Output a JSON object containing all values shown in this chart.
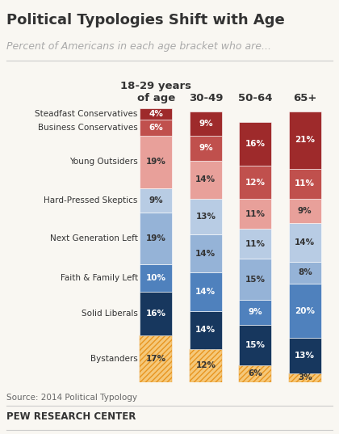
{
  "title": "Political Typologies Shift with Age",
  "subtitle": "Percent of Americans in each age bracket who are...",
  "source": "Source: 2014 Political Typology",
  "footer": "PEW RESEARCH CENTER",
  "age_groups": [
    "18-29 years\nof age",
    "30-49",
    "50-64",
    "65+"
  ],
  "categories": [
    "Steadfast Conservatives",
    "Business Conservatives",
    "Young Outsiders",
    "Hard-Pressed Skeptics",
    "Next Generation Left",
    "Faith & Family Left",
    "Solid Liberals",
    "Bystanders"
  ],
  "values": {
    "18-29 years\nof age": [
      4,
      6,
      19,
      9,
      19,
      10,
      16,
      17
    ],
    "30-49": [
      9,
      9,
      14,
      13,
      14,
      14,
      14,
      12
    ],
    "50-64": [
      16,
      12,
      11,
      11,
      15,
      9,
      15,
      6
    ],
    "65+": [
      21,
      11,
      9,
      14,
      8,
      20,
      13,
      3
    ]
  },
  "solid_colors": {
    "Steadfast Conservatives": "#9e2a2b",
    "Business Conservatives": "#c0504d",
    "Young Outsiders": "#e8a09a",
    "Hard-Pressed Skeptics": "#b8cce4",
    "Next Generation Left": "#95b3d7",
    "Faith & Family Left": "#4f81bd",
    "Solid Liberals": "#17375e"
  },
  "text_colors": {
    "Steadfast Conservatives": "white",
    "Business Conservatives": "white",
    "Young Outsiders": "#333333",
    "Hard-Pressed Skeptics": "#333333",
    "Next Generation Left": "#333333",
    "Faith & Family Left": "white",
    "Solid Liberals": "white",
    "Bystanders": "#333333"
  },
  "bystanders_bg": "#f5c87a",
  "bystanders_hatch_color": "#e89520",
  "background_color": "#f9f7f2",
  "bar_width": 0.65,
  "title_fontsize": 13,
  "subtitle_fontsize": 9,
  "label_fontsize": 7.5,
  "value_fontsize": 7.5,
  "header_fontsize": 9.5,
  "source_fontsize": 7.5,
  "footer_fontsize": 8.5
}
